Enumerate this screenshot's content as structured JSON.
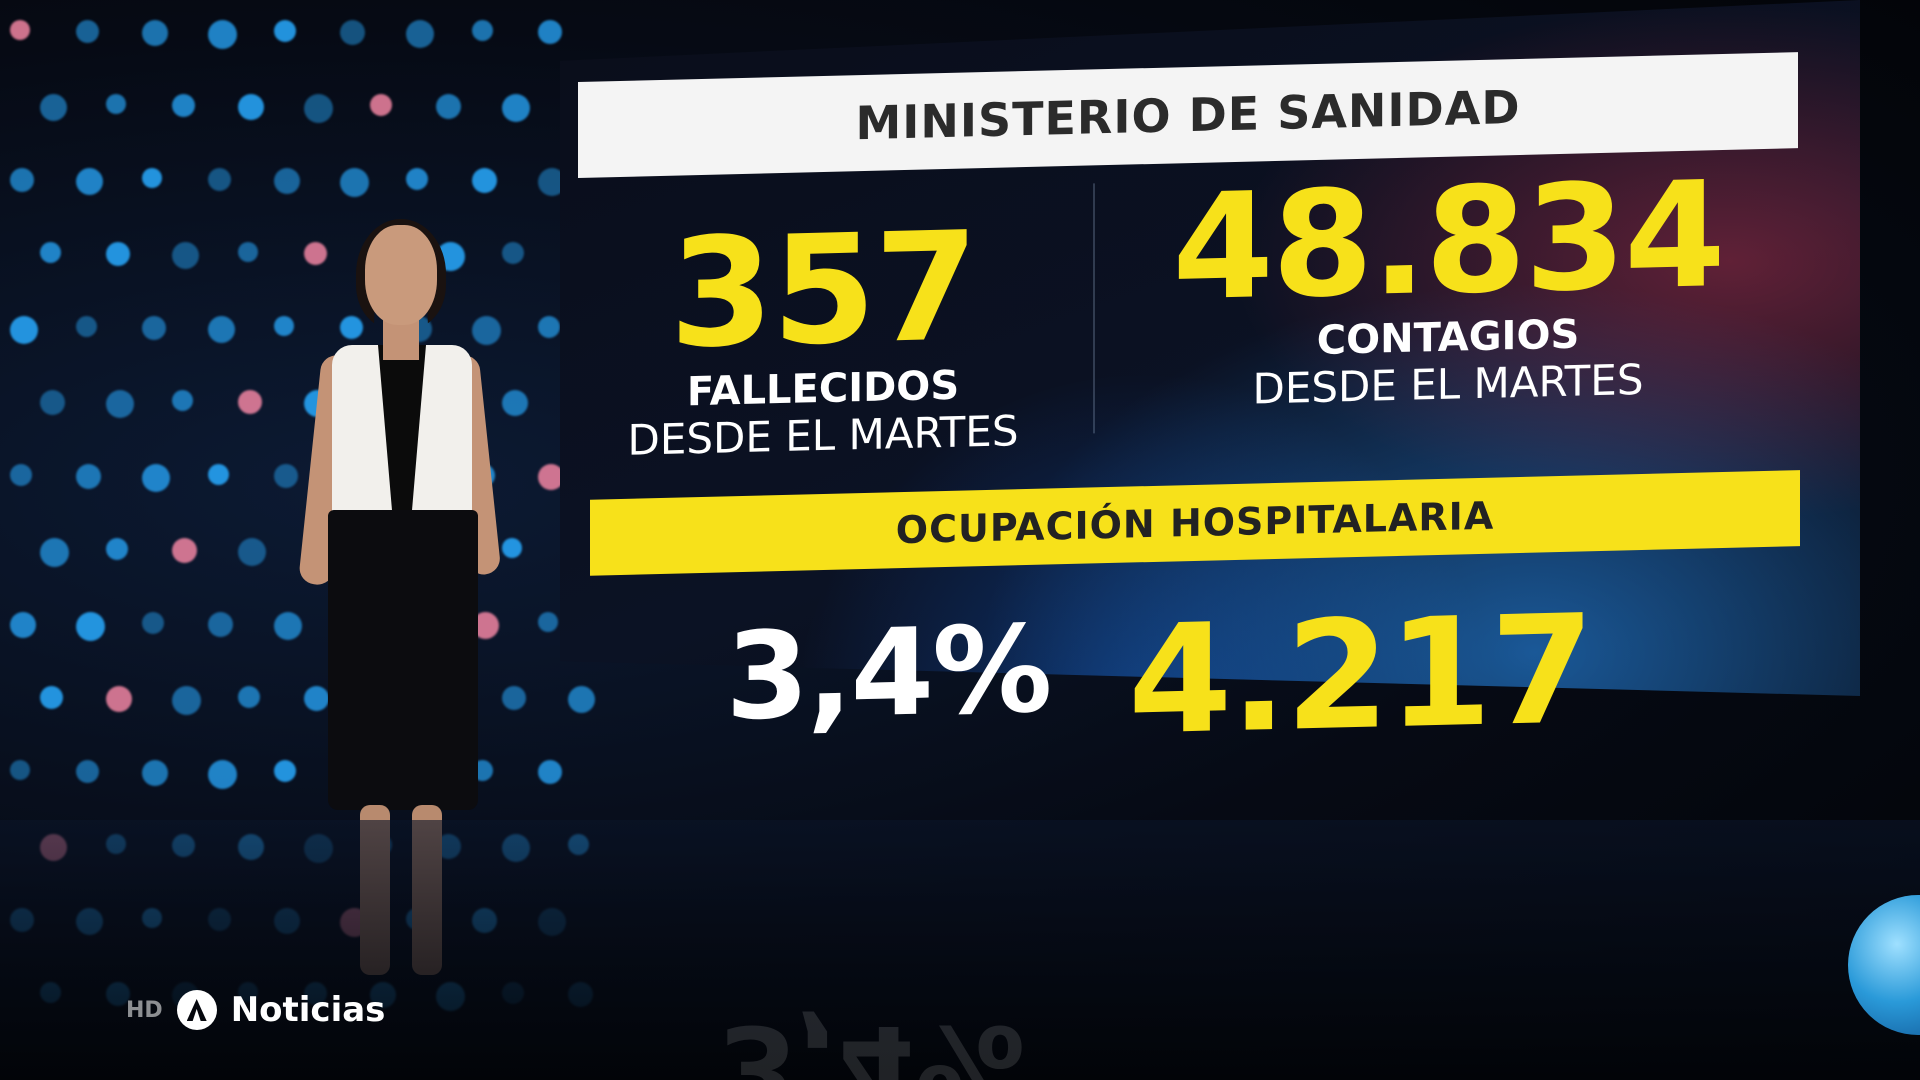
{
  "panel": {
    "header": "MINISTERIO DE SANIDAD",
    "deaths": {
      "value": "357",
      "label": "FALLECIDOS",
      "sublabel": "DESDE EL MARTES"
    },
    "cases": {
      "value": "48.834",
      "label": "CONTAGIOS",
      "sublabel": "DESDE EL MARTES"
    },
    "occupancy": {
      "header": "OCUPACIÓN HOSPITALARIA",
      "percent": "3,4%",
      "count": "4.217"
    }
  },
  "channel": {
    "quality": "HD",
    "name": "Noticias",
    "icon": "antena3-logo-icon"
  },
  "reflection": "3,4%",
  "colors": {
    "accent_yellow": "#f7e11a",
    "header_bg": "#f4f4f4"
  }
}
